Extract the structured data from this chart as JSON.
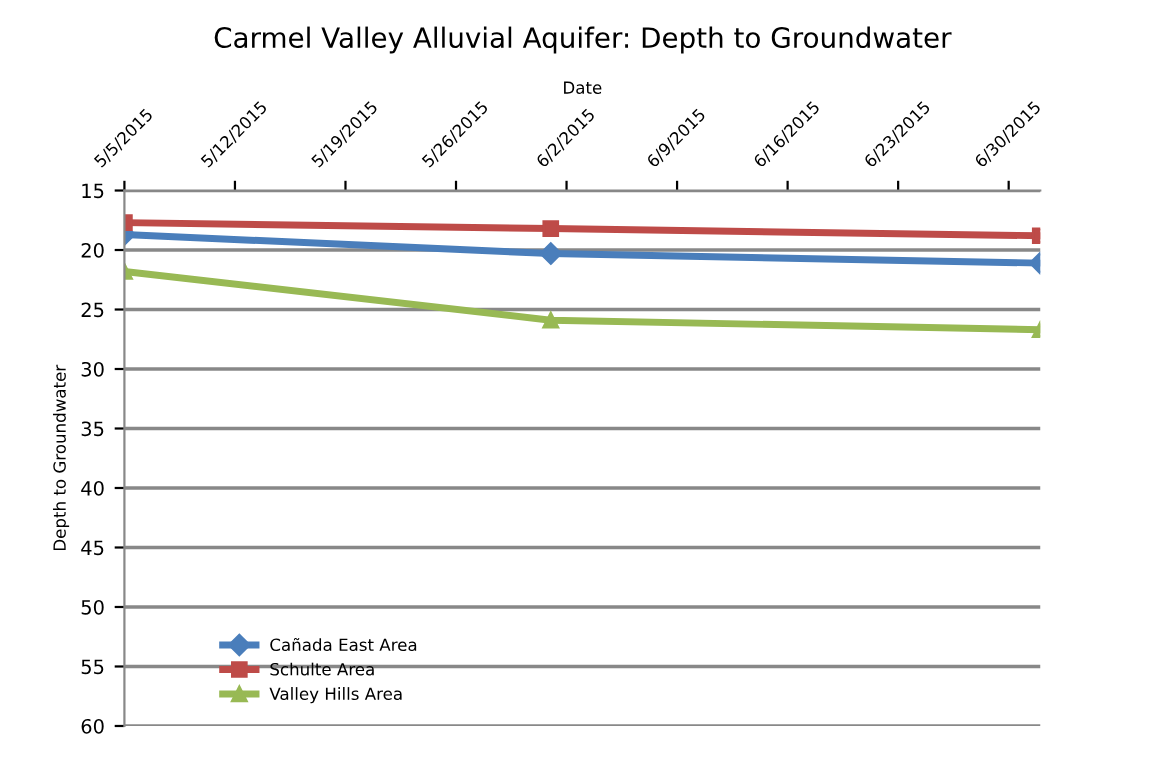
{
  "chart_data": {
    "type": "line",
    "title": "Carmel Valley Alluvial Aquifer: Depth to Groundwater",
    "xlabel": "Date",
    "ylabel": "Depth to Groundwater",
    "x": [
      "2015-05-05",
      "2015-06-01",
      "2015-07-02"
    ],
    "series": [
      {
        "name": "Cañada East Area",
        "color": "#4a7ebb",
        "marker": "diamond",
        "values": [
          18.7,
          20.3,
          21.1
        ]
      },
      {
        "name": "Schulte Area",
        "color": "#be4b48",
        "marker": "square",
        "values": [
          17.7,
          18.2,
          18.8
        ]
      },
      {
        "name": "Valley Hills Area",
        "color": "#98b954",
        "marker": "triangle",
        "values": [
          21.8,
          25.9,
          26.7
        ]
      }
    ],
    "xlim": [
      "2015-05-05",
      "2015-07-02"
    ],
    "xticks": [
      {
        "value": "2015-05-05",
        "label": "5/5/2015"
      },
      {
        "value": "2015-05-12",
        "label": "5/12/2015"
      },
      {
        "value": "2015-05-19",
        "label": "5/19/2015"
      },
      {
        "value": "2015-05-26",
        "label": "5/26/2015"
      },
      {
        "value": "2015-06-02",
        "label": "6/2/2015"
      },
      {
        "value": "2015-06-09",
        "label": "6/9/2015"
      },
      {
        "value": "2015-06-16",
        "label": "6/16/2015"
      },
      {
        "value": "2015-06-23",
        "label": "6/23/2015"
      },
      {
        "value": "2015-06-30",
        "label": "6/30/2015"
      }
    ],
    "ylim": [
      60,
      15
    ],
    "yticks": [
      15,
      20,
      25,
      30,
      35,
      40,
      45,
      50,
      55,
      60
    ],
    "grid": "y",
    "legend": "bottom left"
  }
}
